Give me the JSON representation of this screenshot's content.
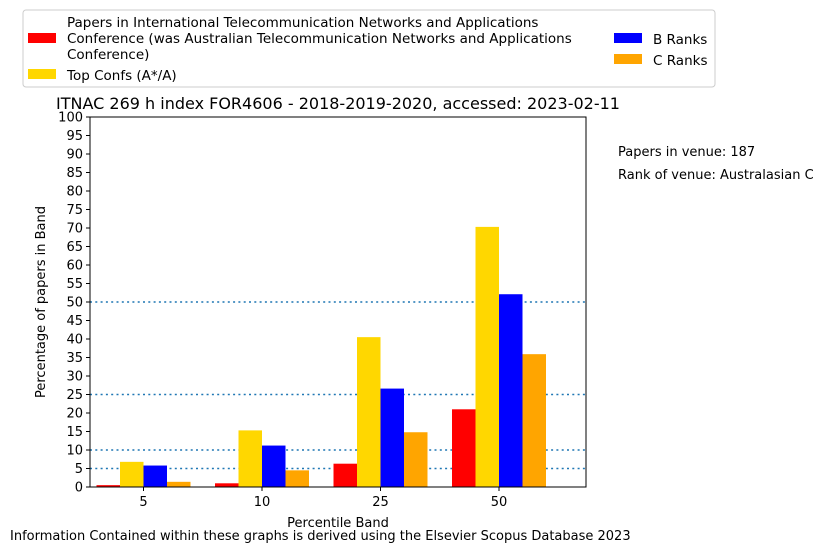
{
  "chart_data": {
    "type": "bar",
    "title": "ITNAC 269 h index FOR4606 - 2018-2019-2020, accessed: 2023-02-11",
    "xlabel": "Percentile Band",
    "ylabel": "Percentage of papers in Band",
    "categories": [
      "5",
      "10",
      "25",
      "50"
    ],
    "ylim": [
      0,
      100
    ],
    "yticks": [
      0,
      5,
      10,
      15,
      20,
      25,
      30,
      35,
      40,
      45,
      50,
      55,
      60,
      65,
      70,
      75,
      80,
      85,
      90,
      95,
      100
    ],
    "reference_lines": [
      5,
      10,
      25,
      50
    ],
    "series": [
      {
        "name": "Papers in International Telecommunication Networks and Applications Conference (was Australian Telecommunication Networks and Applications Conference)",
        "color": "#ff0000",
        "values": [
          0.5,
          1.0,
          6.3,
          21.0
        ]
      },
      {
        "name": "Top Confs (A*/A)",
        "color": "#ffd700",
        "values": [
          6.8,
          15.3,
          40.5,
          70.3
        ]
      },
      {
        "name": "B Ranks",
        "color": "#0000ff",
        "values": [
          5.8,
          11.2,
          26.6,
          52.1
        ]
      },
      {
        "name": "C Ranks",
        "color": "#ffa500",
        "values": [
          1.4,
          4.5,
          14.8,
          35.9
        ]
      }
    ],
    "legend": {
      "placement": "top",
      "items": [
        {
          "lines": [
            "Papers in International Telecommunication Networks and Applications",
            "Conference (was Australian Telecommunication Networks and Applications",
            "Conference)"
          ],
          "color": "#ff0000"
        },
        {
          "lines": [
            "Top Confs (A*/A)"
          ],
          "color": "#ffd700"
        },
        {
          "lines": [
            "B Ranks"
          ],
          "color": "#0000ff"
        },
        {
          "lines": [
            "C Ranks"
          ],
          "color": "#ffa500"
        }
      ]
    },
    "annotations": [
      "Papers in venue: 187",
      "Rank of venue: Australasian C"
    ],
    "footer": "Information Contained within these graphs is derived using the Elsevier Scopus Database 2023",
    "grid": false,
    "refline_color": "#1f77b4"
  }
}
